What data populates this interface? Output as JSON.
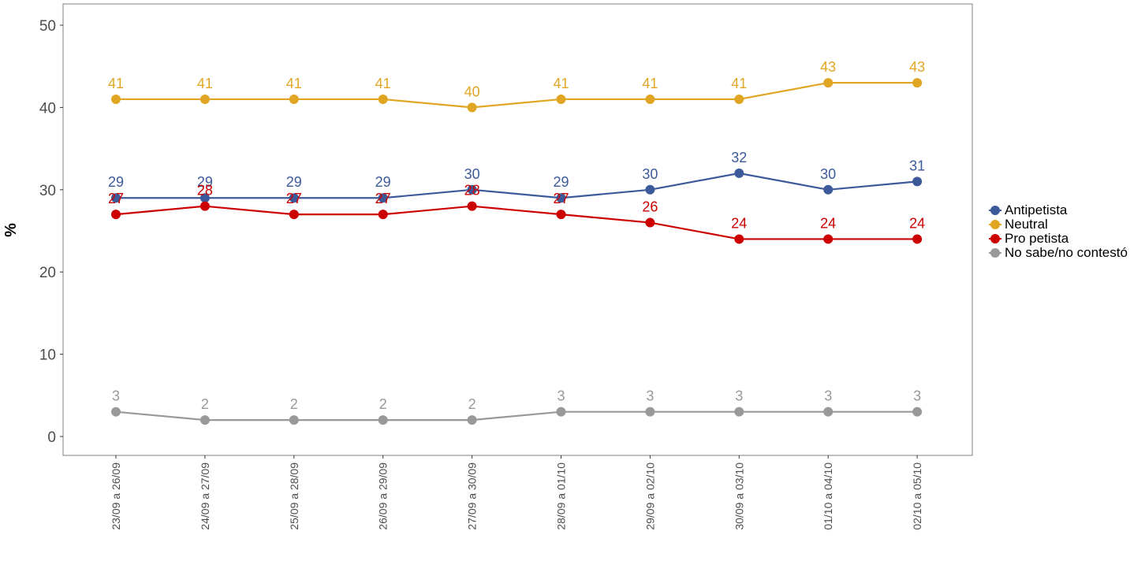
{
  "chart_data": {
    "type": "line",
    "title": "",
    "xlabel": "",
    "ylabel": "%",
    "ylim": [
      0,
      50
    ],
    "yticks": [
      0,
      10,
      20,
      30,
      40,
      50
    ],
    "categories": [
      "23/09 a 26/09",
      "24/09 a 27/09",
      "25/09 a 28/09",
      "26/09 a 29/09",
      "27/09 a 30/09",
      "28/09 a 01/10",
      "29/09 a 02/10",
      "30/09 a 03/10",
      "01/10 a 04/10",
      "02/10 a 05/10"
    ],
    "series": [
      {
        "name": "Antipetista",
        "color": "#3c5a9a",
        "values": [
          29,
          29,
          29,
          29,
          30,
          29,
          30,
          32,
          30,
          31
        ]
      },
      {
        "name": "Neutral",
        "color": "#e0a623",
        "values": [
          41,
          41,
          41,
          41,
          40,
          41,
          41,
          41,
          43,
          43
        ]
      },
      {
        "name": "Pro petista",
        "color": "#cc0000",
        "values": [
          27,
          28,
          27,
          27,
          28,
          27,
          26,
          24,
          24,
          24
        ]
      },
      {
        "name": "No sabe/no contestó",
        "color": "#999999",
        "values": [
          3,
          2,
          2,
          2,
          2,
          3,
          3,
          3,
          3,
          3
        ]
      }
    ],
    "grid": false,
    "legend_position": "right"
  }
}
